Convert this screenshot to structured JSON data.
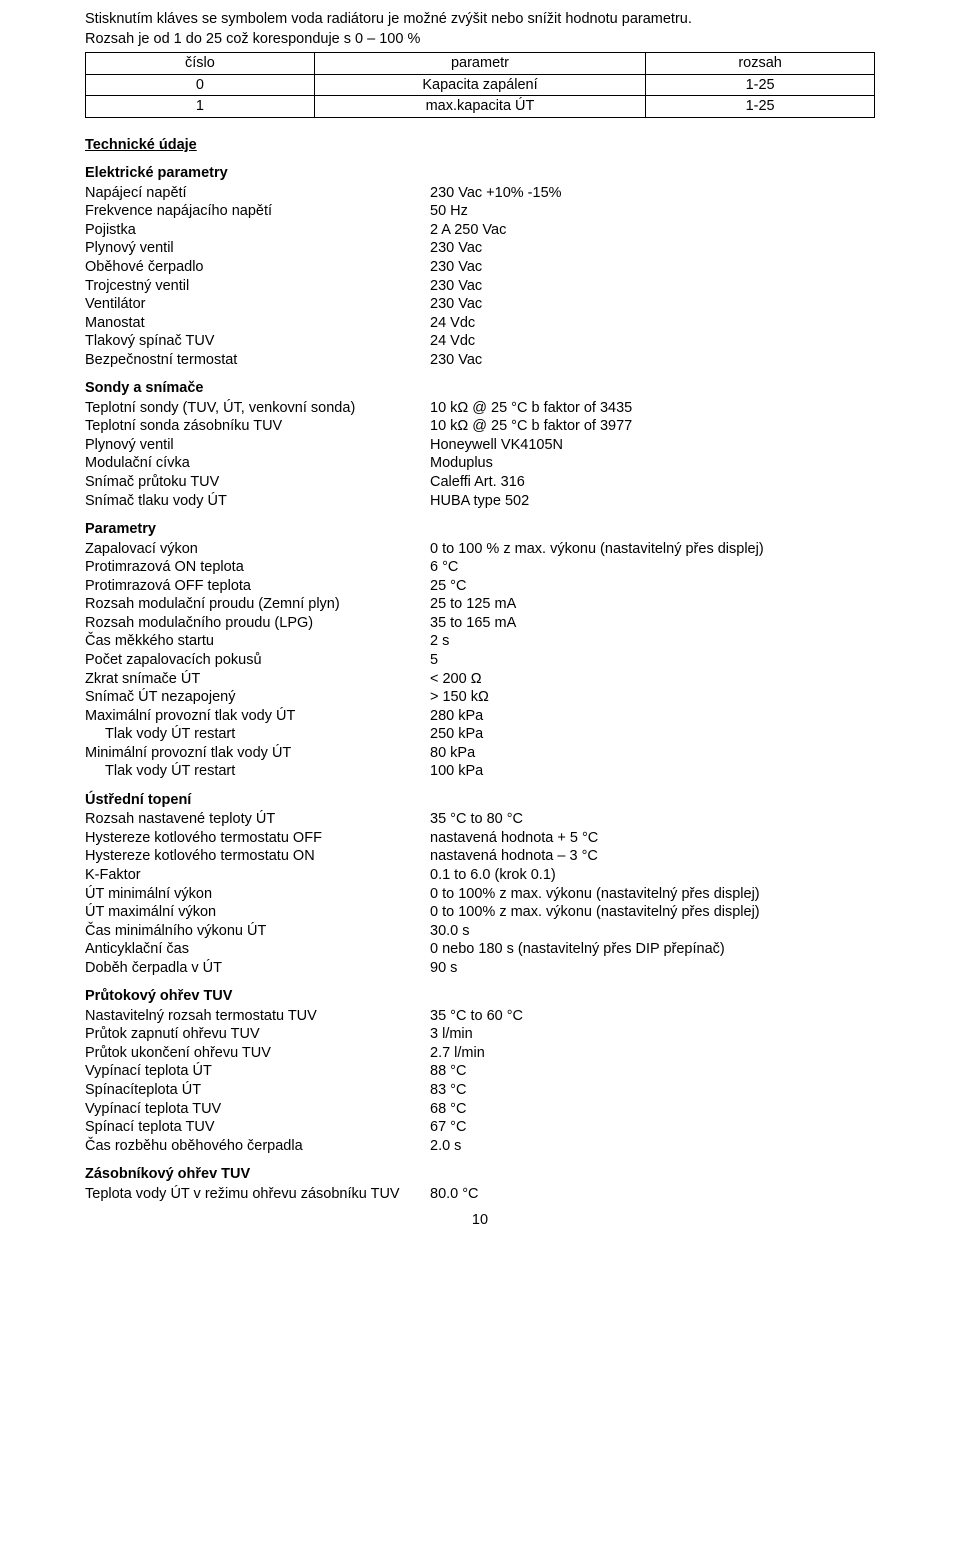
{
  "intro": {
    "line1": "Stisknutím kláves se symbolem voda radiátoru je možné zvýšit nebo snížit hodnotu parametru.",
    "line2": "Rozsah je od 1 do 25 což koresponduje s 0 – 100 %"
  },
  "param_table": {
    "headers": [
      "číslo",
      "parametr",
      "rozsah"
    ],
    "rows": [
      [
        "0",
        "Kapacita zapálení",
        "1-25"
      ],
      [
        "1",
        "max.kapacita ÚT",
        "1-25"
      ]
    ]
  },
  "tech_title": "Technické údaje",
  "sections": [
    {
      "title": "Elektrické parametry",
      "rows": [
        {
          "label": "Napájecí napětí",
          "value": "230 Vac +10% -15%"
        },
        {
          "label": "Frekvence napájacího napětí",
          "value": "50 Hz"
        },
        {
          "label": "Pojistka",
          "value": "2 A 250 Vac"
        },
        {
          "label": "Plynový ventil",
          "value": "230 Vac"
        },
        {
          "label": "Oběhové čerpadlo",
          "value": "230 Vac"
        },
        {
          "label": "Trojcestný ventil",
          "value": "230 Vac"
        },
        {
          "label": "Ventilátor",
          "value": "230 Vac"
        },
        {
          "label": "Manostat",
          "value": "24 Vdc"
        },
        {
          "label": "Tlakový spínač TUV",
          "value": "24 Vdc"
        },
        {
          "label": "Bezpečnostní termostat",
          "value": "230 Vac"
        }
      ]
    },
    {
      "title": "Sondy a snímače",
      "rows": [
        {
          "label": "Teplotní sondy (TUV, ÚT, venkovní sonda)",
          "value": "10 kΩ @ 25 °C b faktor of 3435"
        },
        {
          "label": "Teplotní sonda zásobníku TUV",
          "value": "10 kΩ @ 25 °C b faktor of 3977"
        },
        {
          "label": "Plynový ventil",
          "value": "Honeywell VK4105N"
        },
        {
          "label": "Modulační cívka",
          "value": "Moduplus"
        },
        {
          "label": "Snímač průtoku TUV",
          "value": "Caleffi Art. 316"
        },
        {
          "label": "Snímač tlaku vody ÚT",
          "value": "HUBA type 502"
        }
      ]
    },
    {
      "title": "Parametry",
      "rows": [
        {
          "label": "Zapalovací výkon",
          "value": "0 to 100 % z max. výkonu (nastavitelný přes displej)"
        },
        {
          "label": "Protimrazová ON teplota",
          "value": "6 °C"
        },
        {
          "label": "Protimrazová OFF teplota",
          "value": "25 °C"
        },
        {
          "label": "Rozsah modulační proudu (Zemní plyn)",
          "value": "25 to 125 mA"
        },
        {
          "label": "Rozsah modulačního proudu (LPG)",
          "value": "35 to 165 mA"
        },
        {
          "label": "Čas měkkého startu",
          "value": "2 s"
        },
        {
          "label": "Počet zapalovacích pokusů",
          "value": "5"
        },
        {
          "label": "Zkrat snímače ÚT",
          "value": "< 200 Ω"
        },
        {
          "label": "Snímač ÚT nezapojený",
          "value": "> 150 kΩ"
        },
        {
          "label": "Maximální provozní tlak vody ÚT",
          "value": "280 kPa"
        },
        {
          "label": "Tlak vody ÚT restart",
          "value": "250 kPa",
          "indent": true
        },
        {
          "label": "Minimální provozní tlak vody ÚT",
          "value": "80 kPa"
        },
        {
          "label": "Tlak vody ÚT restart",
          "value": "100 kPa",
          "indent": true
        }
      ]
    },
    {
      "title": "Ústřední topení",
      "rows": [
        {
          "label": "Rozsah nastavené teploty ÚT",
          "value": "35 °C to 80 °C"
        },
        {
          "label": "Hystereze kotlového termostatu OFF",
          "value": "nastavená hodnota + 5 °C"
        },
        {
          "label": "Hystereze kotlového termostatu ON",
          "value": "nastavená hodnota – 3 °C"
        },
        {
          "label": "K-Faktor",
          "value": "0.1 to 6.0 (krok 0.1)"
        },
        {
          "label": "ÚT minimální výkon",
          "value": "0 to 100% z max. výkonu (nastavitelný přes displej)"
        },
        {
          "label": "ÚT maximální výkon",
          "value": "0 to 100% z max. výkonu (nastavitelný přes displej)"
        },
        {
          "label": "Čas minimálního výkonu ÚT",
          "value": "30.0 s"
        },
        {
          "label": "Anticyklační čas",
          "value": "0 nebo 180 s (nastavitelný přes DIP přepínač)"
        },
        {
          "label": "Doběh čerpadla v ÚT",
          "value": "90 s"
        }
      ]
    },
    {
      "title": "Průtokový ohřev TUV",
      "rows": [
        {
          "label": "Nastavitelný rozsah termostatu TUV",
          "value": "35 °C to 60 °C"
        },
        {
          "label": "Průtok zapnutí ohřevu TUV",
          "value": "3 l/min"
        },
        {
          "label": "Průtok ukončení ohřevu TUV",
          "value": "2.7 l/min"
        },
        {
          "label": "Vypínací teplota ÚT",
          "value": "88 °C"
        },
        {
          "label": "Spínacíteplota ÚT",
          "value": "83 °C"
        },
        {
          "label": "Vypínací teplota TUV",
          "value": "68 °C"
        },
        {
          "label": "Spínací teplota TUV",
          "value": "67 °C"
        },
        {
          "label": "Čas rozběhu oběhového čerpadla",
          "value": "2.0 s"
        }
      ]
    },
    {
      "title": "Zásobníkový ohřev TUV",
      "rows": [
        {
          "label": "Teplota vody ÚT v režimu ohřevu zásobníku TUV",
          "value": "80.0 °C"
        }
      ]
    }
  ],
  "page_number": "10"
}
